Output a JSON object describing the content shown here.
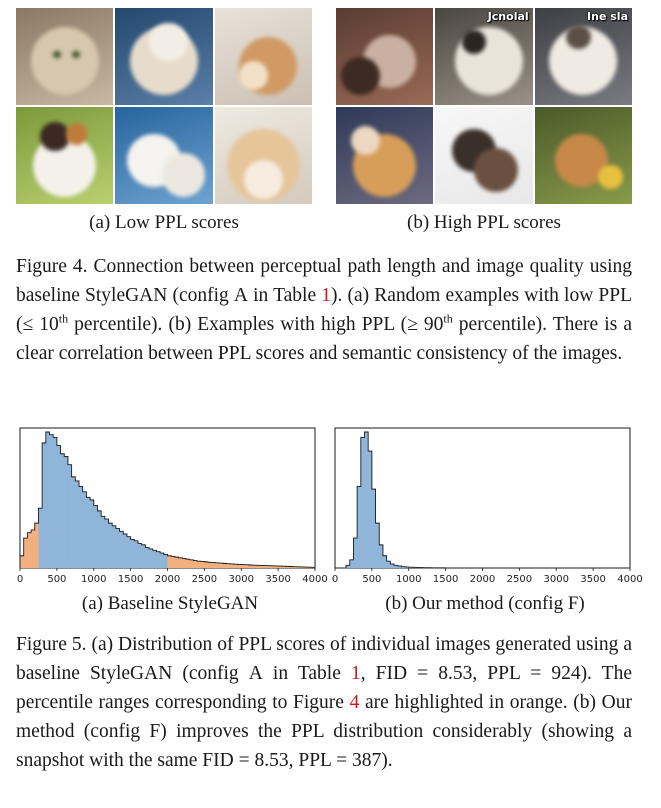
{
  "figure4": {
    "low_grid": [
      {
        "name": "cat-photo-tabby-face",
        "bg": [
          "#8a7864",
          "#c9b8a2"
        ],
        "blobs": [
          [
            "#d7c7ae",
            50,
            55,
            70
          ],
          [
            "#3c5a2a",
            42,
            48,
            8
          ],
          [
            "#3c5a2a",
            62,
            48,
            8
          ]
        ]
      },
      {
        "name": "cat-photo-fluffy-cream",
        "bg": [
          "#24486e",
          "#5a7fa8"
        ],
        "blobs": [
          [
            "#e7dccb",
            50,
            55,
            70
          ],
          [
            "#f3eee5",
            55,
            35,
            40
          ]
        ]
      },
      {
        "name": "cat-photo-orange-kitten",
        "bg": [
          "#e8e2da",
          "#cbbfb2"
        ],
        "blobs": [
          [
            "#d09a64",
            55,
            60,
            60
          ],
          [
            "#f2e1c8",
            40,
            70,
            30
          ]
        ]
      },
      {
        "name": "cat-photo-calico-grass",
        "bg": [
          "#7c9a3a",
          "#b8d070"
        ],
        "blobs": [
          [
            "#f4f1ea",
            50,
            60,
            65
          ],
          [
            "#3a2a22",
            40,
            30,
            30
          ],
          [
            "#c07a3a",
            62,
            28,
            22
          ]
        ]
      },
      {
        "name": "cat-photo-white-kittens",
        "bg": [
          "#27649e",
          "#6ea3cf"
        ],
        "blobs": [
          [
            "#f5f3ef",
            40,
            55,
            55
          ],
          [
            "#ece8e0",
            70,
            70,
            45
          ]
        ]
      },
      {
        "name": "cat-photo-cream-kitten",
        "bg": [
          "#eeeae2",
          "#d4cabd"
        ],
        "blobs": [
          [
            "#e6c59b",
            50,
            60,
            75
          ],
          [
            "#f6ecdf",
            50,
            75,
            40
          ]
        ]
      }
    ],
    "high_grid": [
      {
        "name": "cat-photo-indoor-room",
        "bg": [
          "#5a3c32",
          "#9a6a56"
        ],
        "blobs": [
          [
            "#c9b0a2",
            55,
            55,
            55
          ],
          [
            "#3d2a22",
            25,
            70,
            40
          ]
        ]
      },
      {
        "name": "cat-photo-meme-white-cat",
        "bg": [
          "#4a4640",
          "#9a9288"
        ],
        "blobs": [
          [
            "#e9e4da",
            55,
            55,
            70
          ],
          [
            "#2a2520",
            40,
            35,
            25
          ]
        ],
        "overlay": "Jcnolal"
      },
      {
        "name": "cat-photo-meme-grey-cat",
        "bg": [
          "#3e3f44",
          "#7a7b82"
        ],
        "blobs": [
          [
            "#efeae2",
            50,
            55,
            70
          ],
          [
            "#5a5048",
            45,
            30,
            25
          ]
        ],
        "overlay": "Ine sla"
      },
      {
        "name": "cat-photo-bed-orange-cat",
        "bg": [
          "#2e3a58",
          "#6e6a80"
        ],
        "blobs": [
          [
            "#d79e5a",
            50,
            60,
            65
          ],
          [
            "#ecd7c0",
            30,
            35,
            30
          ]
        ]
      },
      {
        "name": "cat-photo-tortie-white-bg",
        "bg": [
          "#f7f7f7",
          "#e8e8e8"
        ],
        "blobs": [
          [
            "#3a302a",
            40,
            45,
            45
          ],
          [
            "#6a5040",
            62,
            65,
            45
          ]
        ]
      },
      {
        "name": "cat-photo-orange-cat-outdoor",
        "bg": [
          "#4a5a2a",
          "#8a9a4a"
        ],
        "blobs": [
          [
            "#c8884a",
            48,
            55,
            55
          ],
          [
            "#e8c040",
            78,
            72,
            25
          ]
        ]
      }
    ],
    "sub_low": "(a) Low PPL scores",
    "sub_high": "(b) High PPL scores",
    "caption": {
      "p1": "Figure 4.  Connection between perceptual path length and image quality using baseline StyleGAN (config ",
      "config": "A",
      "p2": " in Table ",
      "ref": "1",
      "p3": ").  (a) Ran­dom examples with low PPL (≤ 10",
      "sup1": "th",
      "p4": " percentile).  (b) Examples with high PPL (≥ 90",
      "sup2": "th",
      "p5": " percentile).  There is a clear correlation between PPL scores and semantic consistency of the images."
    }
  },
  "figure5": {
    "sub_a": "(a) Baseline StyleGAN",
    "sub_b_prefix": "(b) Our method (config ",
    "sub_b_config": "F",
    "sub_b_suffix": ")",
    "caption": {
      "p1": "Figure 5.  (a) Distribution of PPL scores of individual images gen­erated using a baseline StyleGAN (config ",
      "config1": "A",
      "p2": " in Table ",
      "ref1": "1",
      "p3": ", FID = 8.53, PPL = 924).  The percentile ranges corresponding to Figure ",
      "ref2": "4",
      "p4": " are highlighted in orange.  (b) Our method (config ",
      "config2": "F",
      "p5": ") improves the PPL distribution considerably (showing a snapshot with the same FID = 8.53, PPL = 387)."
    }
  },
  "chart_data": [
    {
      "type": "histogram",
      "title": "",
      "xlabel": "",
      "ylabel": "",
      "xlim": [
        0,
        4000
      ],
      "ylim": [
        0,
        1
      ],
      "xticks": [
        "0",
        "500",
        "1000",
        "1500",
        "2000",
        "2500",
        "3000",
        "3500",
        "4000"
      ],
      "bin_width": 50,
      "highlight_ranges": [
        [
          0,
          250
        ],
        [
          2000,
          4000
        ]
      ],
      "colors": {
        "bar": "#8fb6d8",
        "highlight": "#f3b07f",
        "edge": "#1a1a1a"
      },
      "values": [
        0.09,
        0.22,
        0.26,
        0.28,
        0.33,
        0.44,
        0.92,
        1.0,
        0.98,
        0.96,
        0.9,
        0.84,
        0.82,
        0.76,
        0.67,
        0.64,
        0.6,
        0.56,
        0.52,
        0.5,
        0.46,
        0.42,
        0.38,
        0.36,
        0.33,
        0.31,
        0.29,
        0.27,
        0.25,
        0.23,
        0.21,
        0.2,
        0.18,
        0.17,
        0.15,
        0.14,
        0.13,
        0.12,
        0.11,
        0.1,
        0.09,
        0.085,
        0.08,
        0.075,
        0.07,
        0.065,
        0.06,
        0.055,
        0.05,
        0.048,
        0.045,
        0.042,
        0.04,
        0.038,
        0.036,
        0.034,
        0.032,
        0.03,
        0.028,
        0.026,
        0.025,
        0.024,
        0.022,
        0.021,
        0.02,
        0.019,
        0.018,
        0.017,
        0.016,
        0.015,
        0.014,
        0.013,
        0.012,
        0.011,
        0.01,
        0.009,
        0.008,
        0.007,
        0.006,
        0.005
      ]
    },
    {
      "type": "histogram",
      "title": "",
      "xlabel": "",
      "ylabel": "",
      "xlim": [
        0,
        4000
      ],
      "ylim": [
        0,
        1
      ],
      "xticks": [
        "0",
        "500",
        "1000",
        "1500",
        "2000",
        "2500",
        "3000",
        "3500",
        "4000"
      ],
      "bin_width": 50,
      "highlight_ranges": [],
      "colors": {
        "bar": "#8fb6d8",
        "highlight": "#f3b07f",
        "edge": "#1a1a1a"
      },
      "values": [
        0.0,
        0.0,
        0.0,
        0.02,
        0.06,
        0.22,
        0.6,
        0.96,
        1.0,
        0.86,
        0.58,
        0.33,
        0.17,
        0.09,
        0.05,
        0.03,
        0.02,
        0.015,
        0.01,
        0.008,
        0.006,
        0.005,
        0.004,
        0.003,
        0.002,
        0.002,
        0.0015,
        0.001,
        0.001,
        0.001,
        0.0008,
        0.0006,
        0.0005,
        0.0004,
        0.0003,
        0.0003,
        0.0002,
        0.0002,
        0.0001,
        0.0001
      ]
    }
  ]
}
